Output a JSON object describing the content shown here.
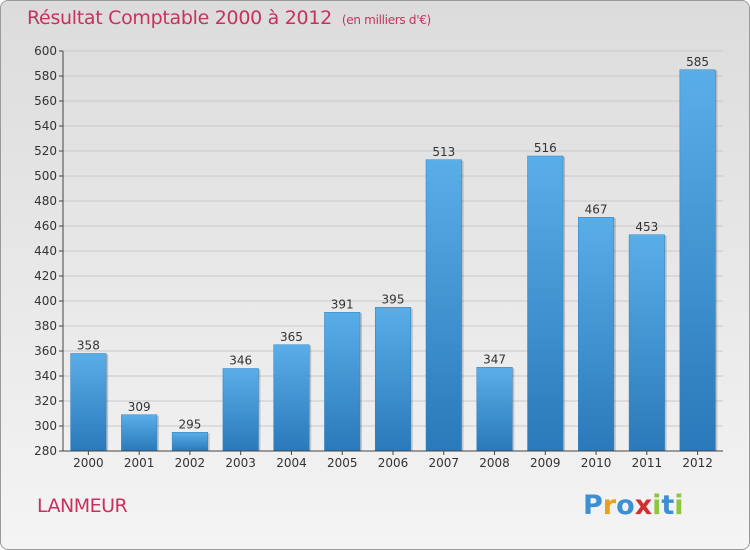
{
  "title": "Résultat Comptable 2000 à 2012",
  "subtitle": "(en milliers d'€)",
  "place": "LANMEUR",
  "logo": {
    "letters": [
      {
        "ch": "P",
        "color": "#3c8fd2"
      },
      {
        "ch": "r",
        "color": "#e8a11d"
      },
      {
        "ch": "o",
        "color": "#3c8fd2"
      },
      {
        "ch": "x",
        "color": "#cf2f2f"
      },
      {
        "ch": "i",
        "color": "#8cc63f"
      },
      {
        "ch": "t",
        "color": "#3c8fd2"
      },
      {
        "ch": "i",
        "color": "#8cc63f"
      }
    ]
  },
  "colors": {
    "title": "#c8315f",
    "bar_top": "#5aaee8",
    "bar_bottom": "#2a79ba",
    "grid": "#c9c9c9",
    "axis": "#444444"
  },
  "chart_data": {
    "type": "bar",
    "title": "Résultat Comptable 2000 à 2012",
    "subtitle": "(en milliers d'€)",
    "categories": [
      "2000",
      "2001",
      "2002",
      "2003",
      "2004",
      "2005",
      "2006",
      "2007",
      "2008",
      "2009",
      "2010",
      "2011",
      "2012"
    ],
    "values": [
      358,
      309,
      295,
      346,
      365,
      391,
      395,
      513,
      347,
      516,
      467,
      453,
      585
    ],
    "ylim": [
      280,
      600
    ],
    "ytick_step": 20,
    "grid": true,
    "xlabel": "",
    "ylabel": ""
  }
}
